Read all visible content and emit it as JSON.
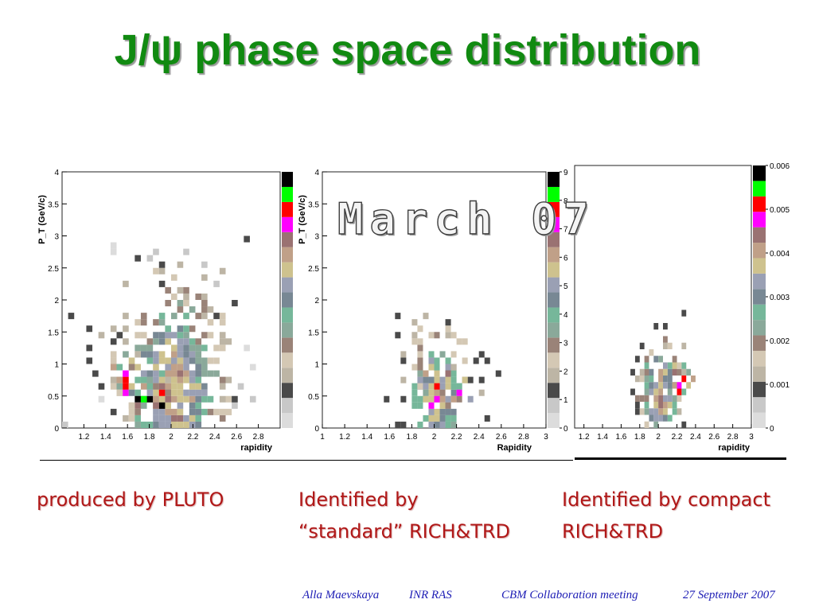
{
  "title": "J/ψ phase space distribution",
  "stamp": "March 07",
  "captions": [
    "produced by PLUTO",
    "Identified by\n“standard” RICH&TRD",
    "Identified by compact\nRICH&TRD"
  ],
  "footer": {
    "author": "Alla Maevskaya",
    "institute": "INR RAS",
    "meeting": "CBM Collaboration meeting",
    "date": "27 September 2007"
  },
  "colors": {
    "title": "#118a11",
    "caption": "#b01818",
    "footer": "#1d1db5",
    "palette": [
      "#dcdcdc",
      "#c8c8c8",
      "#4a4a4a",
      "#bdb5a5",
      "#d4c8b4",
      "#9a8378",
      "#8aa99a",
      "#76b79a",
      "#788894",
      "#9aa0b4",
      "#cec28e",
      "#c0a088",
      "#9a7272",
      "#ff00ff",
      "#ff0000",
      "#00ff00",
      "#000000"
    ]
  },
  "chart_data": [
    {
      "type": "heatmap",
      "title": "",
      "xlabel": "rapidity",
      "ylabel": "P_T (GeV/c)",
      "x_ticks": [
        "1.2",
        "1.4",
        "1.6",
        "1.8",
        "2",
        "2.2",
        "2.4",
        "2.6",
        "2.8"
      ],
      "y_ticks": [
        "0",
        "0.5",
        "1",
        "1.5",
        "2",
        "2.5",
        "3",
        "3.5",
        "4"
      ],
      "colorbar_ticks": [],
      "xlim": [
        1.0,
        3.0
      ],
      "ylim": [
        0,
        4
      ],
      "bins": {
        "nx": 36,
        "ny": 40
      },
      "cells_xy_level": [
        [
          16,
          3,
          16
        ],
        [
          14,
          4,
          16
        ],
        [
          12,
          4,
          16
        ],
        [
          16,
          5,
          14
        ],
        [
          10,
          5,
          13
        ],
        [
          10,
          6,
          14
        ],
        [
          10,
          7,
          14
        ],
        [
          10,
          8,
          13
        ],
        [
          13,
          4,
          15
        ],
        [
          12,
          3,
          12
        ],
        [
          15,
          4,
          11
        ],
        [
          11,
          6,
          10
        ],
        [
          14,
          6,
          7
        ],
        [
          17,
          5,
          5
        ],
        [
          13,
          8,
          9
        ],
        [
          12,
          9,
          10
        ],
        [
          11,
          5,
          8
        ],
        [
          9,
          6,
          6
        ],
        [
          9,
          7,
          11
        ],
        [
          12,
          7,
          7
        ],
        [
          14,
          7,
          6
        ],
        [
          13,
          6,
          11
        ],
        [
          11,
          9,
          5
        ],
        [
          9,
          9,
          7
        ],
        [
          15,
          9,
          10
        ],
        [
          8,
          7,
          3
        ],
        [
          16,
          8,
          7
        ],
        [
          9,
          5,
          4
        ],
        [
          17,
          7,
          3
        ],
        [
          8,
          9,
          11
        ],
        [
          15,
          3,
          12
        ],
        [
          11,
          3,
          4
        ],
        [
          14,
          5,
          9
        ],
        [
          15,
          6,
          5
        ],
        [
          16,
          6,
          12
        ],
        [
          8,
          10,
          4
        ],
        [
          11,
          10,
          10
        ],
        [
          14,
          10,
          7
        ],
        [
          12,
          11,
          3
        ],
        [
          10,
          11,
          6
        ]
      ]
    },
    {
      "type": "heatmap",
      "title": "",
      "xlabel": "Rapidity",
      "ylabel": "P_T (GeV/c)",
      "x_ticks": [
        "1",
        "1.2",
        "1.4",
        "1.6",
        "1.8",
        "2",
        "2.2",
        "2.4",
        "2.6",
        "2.8",
        "3"
      ],
      "y_ticks": [
        "0",
        "0.5",
        "1",
        "1.5",
        "2",
        "2.5",
        "3",
        "3.5",
        "4"
      ],
      "colorbar_ticks": [
        "0",
        "1",
        "2",
        "3",
        "4",
        "5",
        "6",
        "7",
        "8",
        "9"
      ],
      "xlim": [
        1.0,
        3.0
      ],
      "ylim": [
        0,
        4
      ],
      "bins": {
        "nx": 40,
        "ny": 40
      },
      "cells_xy_level": [
        [
          20,
          4,
          13
        ],
        [
          24,
          5,
          13
        ],
        [
          19,
          3,
          13
        ],
        [
          20,
          6,
          14
        ],
        [
          22,
          8,
          12
        ],
        [
          19,
          7,
          8
        ],
        [
          23,
          4,
          11
        ],
        [
          25,
          7,
          10
        ],
        [
          18,
          5,
          6
        ],
        [
          21,
          5,
          5
        ],
        [
          24,
          6,
          7
        ],
        [
          23,
          9,
          3
        ],
        [
          19,
          9,
          10
        ],
        [
          17,
          6,
          4
        ],
        [
          26,
          4,
          9
        ],
        [
          22,
          3,
          5
        ],
        [
          18,
          8,
          11
        ],
        [
          20,
          9,
          7
        ]
      ]
    },
    {
      "type": "heatmap",
      "title": "",
      "xlabel": "rapidity",
      "ylabel": "",
      "x_ticks": [
        "1.2",
        "1.4",
        "1.6",
        "1.8",
        "2",
        "2.2",
        "2.4",
        "2.6",
        "2.8",
        "3"
      ],
      "y_ticks": [],
      "colorbar_ticks": [
        "0",
        "0.001",
        "0.002",
        "0.003",
        "0.004",
        "0.005",
        "0.006"
      ],
      "xlim": [
        1.1,
        3.0
      ],
      "ylim": [
        0,
        4
      ],
      "bins": {
        "nx": 38,
        "ny": 40
      },
      "cells_xy_level": [
        [
          22,
          5,
          14
        ],
        [
          22,
          6,
          13
        ],
        [
          23,
          7,
          14
        ],
        [
          21,
          6,
          11
        ],
        [
          20,
          7,
          8
        ],
        [
          23,
          5,
          7
        ],
        [
          24,
          6,
          10
        ],
        [
          21,
          8,
          12
        ],
        [
          22,
          8,
          5
        ],
        [
          19,
          6,
          9
        ],
        [
          24,
          8,
          6
        ],
        [
          20,
          5,
          6
        ],
        [
          25,
          7,
          11
        ],
        [
          22,
          9,
          4
        ],
        [
          21,
          9,
          10
        ],
        [
          23,
          9,
          7
        ]
      ]
    }
  ]
}
